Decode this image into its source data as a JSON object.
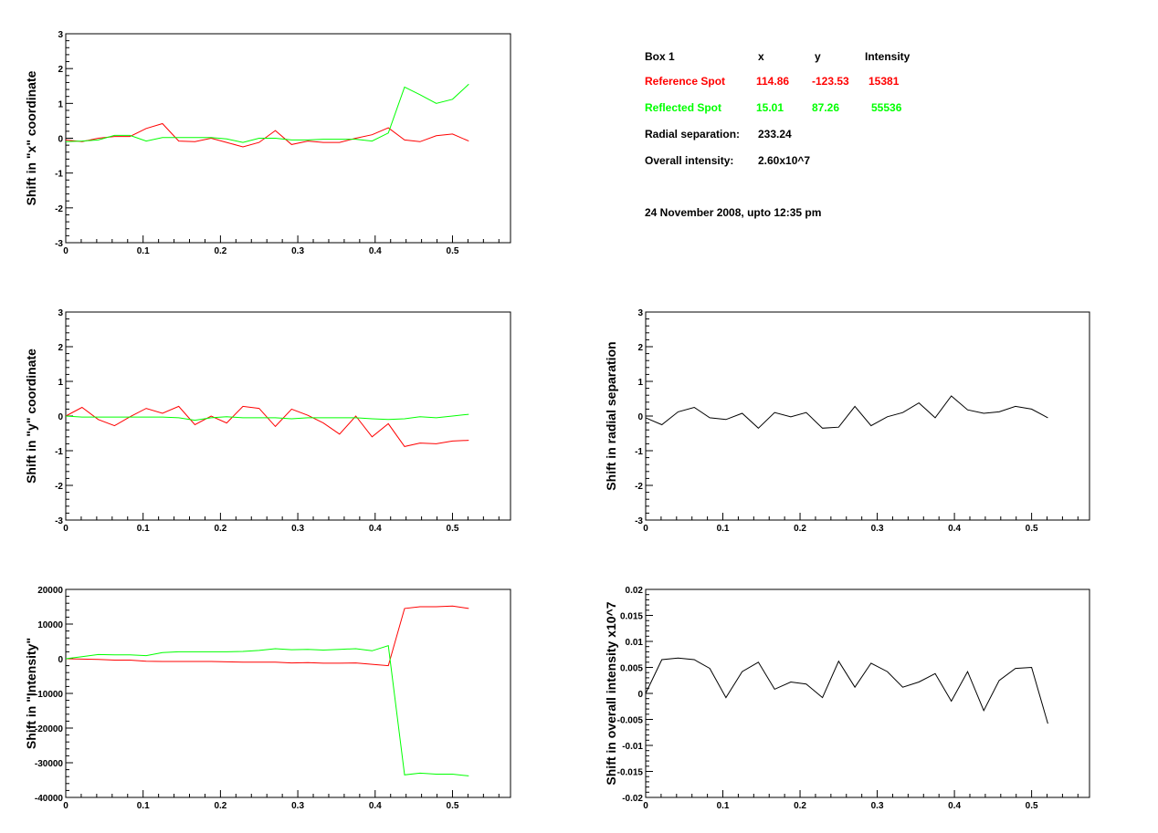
{
  "info": {
    "header": {
      "box": "Box 1",
      "x": "x",
      "y": "y",
      "intensity": "Intensity"
    },
    "reference": {
      "label": "Reference Spot",
      "x": "114.86",
      "y": "-123.53",
      "intensity": "15381",
      "color": "#ff0000"
    },
    "reflected": {
      "label": "Reflected Spot",
      "x": "15.01",
      "y": "87.26",
      "intensity": "55536",
      "color": "#00ff00"
    },
    "radial": {
      "label": "Radial separation:",
      "value": "233.24"
    },
    "overall": {
      "label": "Overall intensity:",
      "value": "2.60x10^7"
    },
    "date": "24 November 2008, upto 12:35 pm"
  },
  "chart_data": [
    {
      "type": "line",
      "ylabel": "Shift in \"x\" coordinate",
      "xlim": [
        0,
        0.575
      ],
      "ylim": [
        -3,
        3
      ],
      "xticks": [
        "0",
        "0.1",
        "0.2",
        "0.3",
        "0.4",
        "0.5"
      ],
      "yticks": [
        "-3",
        "-2",
        "-1",
        "0",
        "1",
        "2",
        "3"
      ],
      "x": [
        0,
        0.021,
        0.042,
        0.063,
        0.083,
        0.104,
        0.125,
        0.146,
        0.167,
        0.188,
        0.208,
        0.229,
        0.25,
        0.271,
        0.292,
        0.313,
        0.333,
        0.354,
        0.375,
        0.396,
        0.417,
        0.438,
        0.458,
        0.479,
        0.5,
        0.521
      ],
      "series": [
        {
          "color": "#ff0000",
          "values": [
            -0.05,
            -0.1,
            0.0,
            0.05,
            0.05,
            0.28,
            0.42,
            -0.08,
            -0.1,
            0.0,
            -0.12,
            -0.25,
            -0.12,
            0.22,
            -0.18,
            -0.08,
            -0.12,
            -0.12,
            0.0,
            0.1,
            0.3,
            -0.05,
            -0.1,
            0.07,
            0.12,
            -0.08
          ]
        },
        {
          "color": "#00ff00",
          "values": [
            -0.1,
            -0.08,
            -0.05,
            0.08,
            0.08,
            -0.08,
            0.02,
            0.02,
            0.02,
            0.02,
            -0.02,
            -0.12,
            0.0,
            0.0,
            -0.05,
            -0.05,
            -0.03,
            -0.03,
            -0.03,
            -0.08,
            0.15,
            1.47,
            1.25,
            1.0,
            1.12,
            1.55
          ]
        }
      ]
    },
    {
      "type": "line",
      "ylabel": "Shift in \"y\" coordinate",
      "xlim": [
        0,
        0.575
      ],
      "ylim": [
        -3,
        3
      ],
      "xticks": [
        "0",
        "0.1",
        "0.2",
        "0.3",
        "0.4",
        "0.5"
      ],
      "yticks": [
        "-3",
        "-2",
        "-1",
        "0",
        "1",
        "2",
        "3"
      ],
      "x": [
        0,
        0.021,
        0.042,
        0.063,
        0.083,
        0.104,
        0.125,
        0.146,
        0.167,
        0.188,
        0.208,
        0.229,
        0.25,
        0.271,
        0.292,
        0.313,
        0.333,
        0.354,
        0.375,
        0.396,
        0.417,
        0.438,
        0.458,
        0.479,
        0.5,
        0.521
      ],
      "series": [
        {
          "color": "#ff0000",
          "values": [
            0.0,
            0.25,
            -0.1,
            -0.28,
            -0.02,
            0.22,
            0.08,
            0.28,
            -0.25,
            0.0,
            -0.2,
            0.28,
            0.22,
            -0.3,
            0.2,
            0.02,
            -0.2,
            -0.52,
            0.0,
            -0.6,
            -0.22,
            -0.88,
            -0.78,
            -0.8,
            -0.72,
            -0.7
          ]
        },
        {
          "color": "#00ff00",
          "values": [
            0.0,
            -0.03,
            -0.03,
            -0.03,
            -0.03,
            -0.03,
            -0.03,
            -0.05,
            -0.12,
            -0.05,
            -0.02,
            -0.05,
            -0.05,
            -0.05,
            -0.08,
            -0.05,
            -0.05,
            -0.05,
            -0.05,
            -0.08,
            -0.1,
            -0.08,
            -0.02,
            -0.05,
            0.0,
            0.05
          ]
        }
      ]
    },
    {
      "type": "line",
      "ylabel": "Shift in \"Intensity\"",
      "xlim": [
        0,
        0.575
      ],
      "ylim": [
        -40000,
        20000
      ],
      "xticks": [
        "0",
        "0.1",
        "0.2",
        "0.3",
        "0.4",
        "0.5"
      ],
      "yticks": [
        "-40000",
        "-30000",
        "-20000",
        "-10000",
        "0",
        "10000",
        "20000"
      ],
      "x": [
        0,
        0.021,
        0.042,
        0.063,
        0.083,
        0.104,
        0.125,
        0.146,
        0.167,
        0.188,
        0.208,
        0.229,
        0.25,
        0.271,
        0.292,
        0.313,
        0.333,
        0.354,
        0.375,
        0.396,
        0.417,
        0.438,
        0.458,
        0.479,
        0.5,
        0.521
      ],
      "series": [
        {
          "color": "#ff0000",
          "values": [
            0,
            -100,
            -200,
            -400,
            -400,
            -700,
            -800,
            -800,
            -800,
            -800,
            -900,
            -1000,
            -1000,
            -1000,
            -1200,
            -1100,
            -1300,
            -1300,
            -1200,
            -1600,
            -2000,
            14500,
            15000,
            15000,
            15200,
            14500
          ]
        },
        {
          "color": "#00ff00",
          "values": [
            0,
            600,
            1200,
            1100,
            1100,
            900,
            1800,
            2000,
            2000,
            2000,
            2000,
            2100,
            2400,
            2900,
            2600,
            2700,
            2500,
            2700,
            2900,
            2300,
            3800,
            -33500,
            -33000,
            -33300,
            -33300,
            -33800
          ]
        }
      ]
    },
    {
      "type": "line",
      "ylabel": "Shift in radial separation",
      "xlim": [
        0,
        0.575
      ],
      "ylim": [
        -3,
        3
      ],
      "xticks": [
        "0",
        "0.1",
        "0.2",
        "0.3",
        "0.4",
        "0.5"
      ],
      "yticks": [
        "-3",
        "-2",
        "-1",
        "0",
        "1",
        "2",
        "3"
      ],
      "x": [
        0,
        0.021,
        0.042,
        0.063,
        0.083,
        0.104,
        0.125,
        0.146,
        0.167,
        0.188,
        0.208,
        0.229,
        0.25,
        0.271,
        0.292,
        0.313,
        0.333,
        0.354,
        0.375,
        0.396,
        0.417,
        0.438,
        0.458,
        0.479,
        0.5,
        0.521
      ],
      "series": [
        {
          "color": "#000000",
          "values": [
            -0.05,
            -0.25,
            0.12,
            0.25,
            -0.05,
            -0.1,
            0.08,
            -0.35,
            0.1,
            -0.02,
            0.1,
            -0.35,
            -0.32,
            0.28,
            -0.28,
            -0.02,
            0.1,
            0.38,
            -0.05,
            0.58,
            0.18,
            0.08,
            0.12,
            0.28,
            0.2,
            -0.05
          ]
        }
      ]
    },
    {
      "type": "line",
      "ylabel": "Shift in overall intensity x10^7",
      "xlim": [
        0,
        0.575
      ],
      "ylim": [
        -0.02,
        0.02
      ],
      "xticks": [
        "0",
        "0.1",
        "0.2",
        "0.3",
        "0.4",
        "0.5"
      ],
      "yticks": [
        "-0.02",
        "-0.015",
        "-0.01",
        "-0.005",
        "0",
        "0.005",
        "0.01",
        "0.015",
        "0.02"
      ],
      "x": [
        0,
        0.021,
        0.042,
        0.063,
        0.083,
        0.104,
        0.125,
        0.146,
        0.167,
        0.188,
        0.208,
        0.229,
        0.25,
        0.271,
        0.292,
        0.313,
        0.333,
        0.354,
        0.375,
        0.396,
        0.417,
        0.438,
        0.458,
        0.479,
        0.5,
        0.521
      ],
      "series": [
        {
          "color": "#000000",
          "values": [
            0.0,
            0.0065,
            0.0068,
            0.0065,
            0.0048,
            -0.0008,
            0.0042,
            0.006,
            0.0008,
            0.0022,
            0.0018,
            -0.0008,
            0.0062,
            0.0012,
            0.0058,
            0.0042,
            0.0012,
            0.0022,
            0.0038,
            -0.0015,
            0.0042,
            -0.0033,
            0.0025,
            0.0048,
            0.005,
            -0.0058
          ]
        }
      ]
    }
  ]
}
